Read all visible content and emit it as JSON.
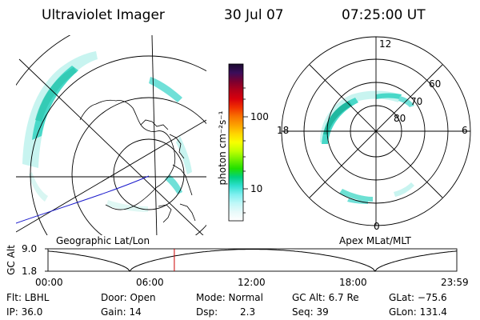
{
  "header": {
    "instrument": "Ultraviolet Imager",
    "date": "30 Jul 07",
    "time": "07:25:00 UT"
  },
  "colorbar": {
    "label": "photon cm⁻²s⁻¹",
    "ticks": [
      "100",
      "10"
    ],
    "scale": "log",
    "colors": [
      "#1a0a2e",
      "#3a0d5a",
      "#7a0030",
      "#b0001a",
      "#d8000c",
      "#f03000",
      "#f87000",
      "#fca000",
      "#ffd400",
      "#f8ff00",
      "#c0ff00",
      "#70f000",
      "#20e000",
      "#00d080",
      "#30e0d0",
      "#80f0f0",
      "#c0f8f8",
      "#e8fafa",
      "#ffffff"
    ]
  },
  "panels": {
    "left_caption": "Geographic Lat/Lon",
    "right_caption": "Apex MLat/MLT",
    "mlt_labels": {
      "top": "12",
      "left": "18",
      "right": "6",
      "bottom": "0"
    },
    "mlat_labels": [
      "60",
      "70",
      "80"
    ]
  },
  "altitude_plot": {
    "ylabel": "GC Alt",
    "y_ticks": [
      "9.0",
      "1.8"
    ],
    "x_ticks": [
      "00:00",
      "06:00",
      "12:00",
      "18:00",
      "23:59"
    ],
    "current_time_hours": 7.4167,
    "marker_color": "#cc0000"
  },
  "info": {
    "filter": "Flt: LBHL",
    "door": "Door: Open",
    "mode": "Mode: Normal",
    "gc_alt": "GC Alt: 6.7 Re",
    "glat": "GLat: −75.6",
    "ip": "IP: 36.0",
    "gain": "Gain: 14",
    "dsp_label": "Dsp:",
    "dsp_value": "2.3",
    "seq": "Seq: 39",
    "glon": "GLon: 131.4"
  },
  "accent_colors": {
    "aurora": "#48d8c8",
    "aurora_bright": "#20b8a0",
    "line": "#000000",
    "orbit": "#0000cc"
  }
}
